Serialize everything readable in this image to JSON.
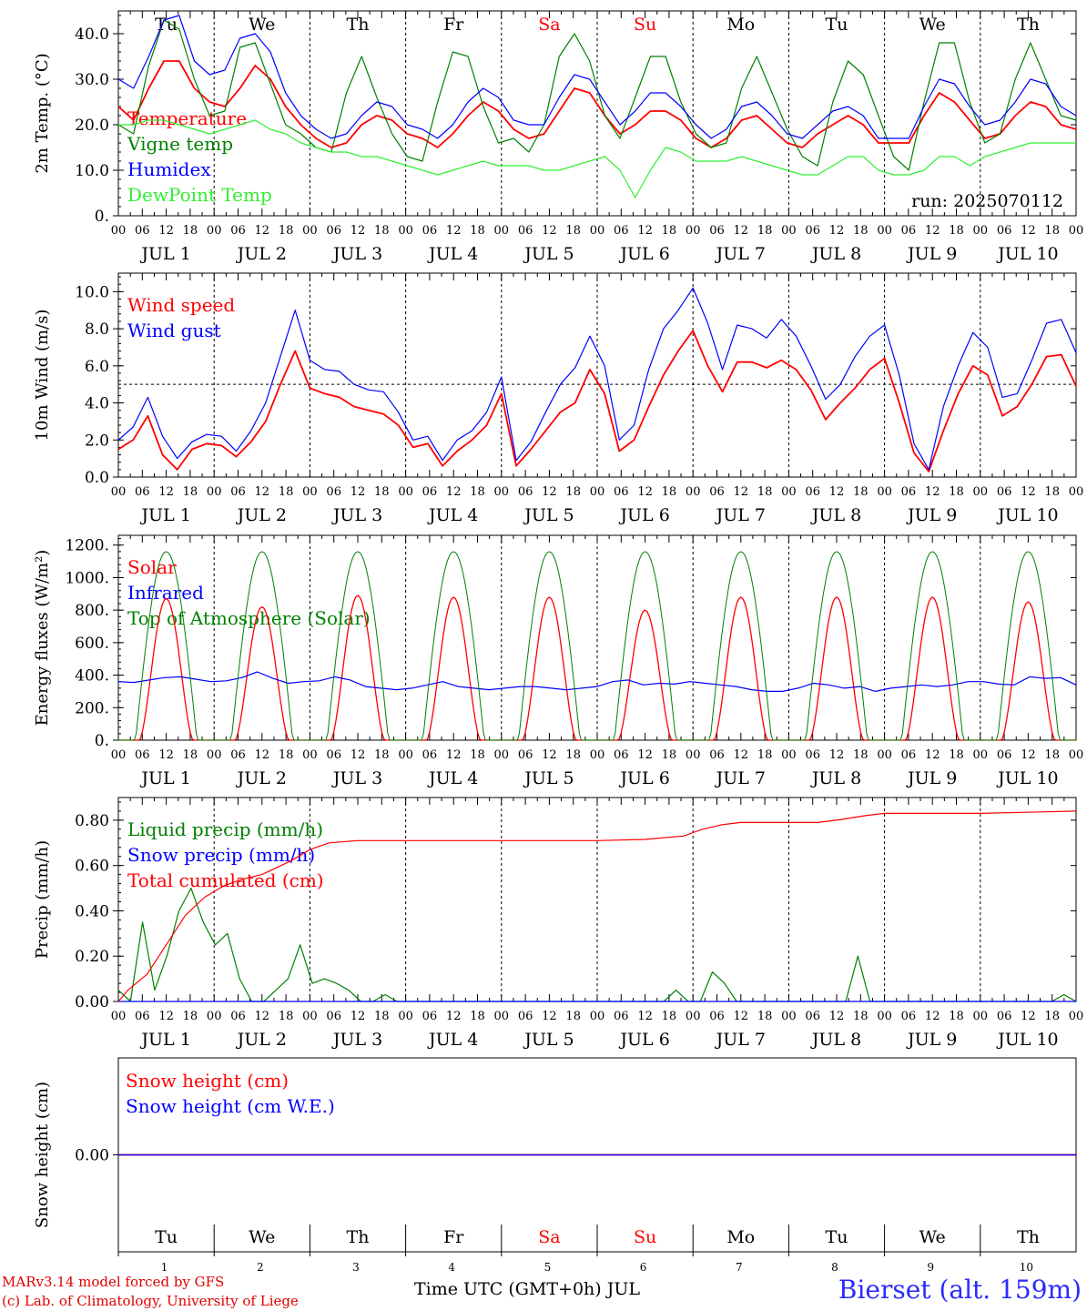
{
  "days": {
    "weekdays": [
      "Tu",
      "We",
      "Th",
      "Fr",
      "Sa",
      "Su",
      "Mo",
      "Tu",
      "We",
      "Th"
    ],
    "weekend_flags": [
      false,
      false,
      false,
      false,
      true,
      true,
      false,
      false,
      false,
      false
    ],
    "date_labels": [
      "JUL  1",
      "JUL  2",
      "JUL  3",
      "JUL  4",
      "JUL  5",
      "JUL  6",
      "JUL  7",
      "JUL  8",
      "JUL  9",
      "JUL 10"
    ],
    "day_numbers": [
      "1",
      "2",
      "3",
      "4",
      "5",
      "6",
      "7",
      "8",
      "9",
      "10"
    ],
    "hour_labels": [
      "00",
      "06",
      "12",
      "18"
    ],
    "end_hour_label": "00"
  },
  "colors": {
    "red": "#ff0000",
    "green": "#008000",
    "blue": "#0000ff",
    "lightgreen": "#33ee33",
    "weekend": "#ff0000"
  },
  "run_label": "run: 2025070112",
  "footer": {
    "model_line": "MARv3.14 model forced by GFS",
    "copyright_line": "(c) Lab. of Climatology, University of Liege",
    "x_axis_title": "Time UTC (GMT+0h) JUL",
    "station": "Bierset (alt. 159m)"
  },
  "chart_data": [
    {
      "type": "line",
      "ylabel": "2m Temp. (°C)",
      "ylim": [
        0,
        45
      ],
      "ytick_labels": [
        "0.",
        "10.0",
        "20.0",
        "30.0",
        "40.0"
      ],
      "yticks": [
        0,
        10,
        20,
        30,
        40
      ],
      "legend": [
        "Temperature",
        "Vigne temp",
        "Humidex",
        "DewPoint Temp"
      ],
      "series": [
        {
          "name": "Temperature",
          "color": "red",
          "values": [
            24,
            21,
            28,
            34,
            34,
            28,
            25,
            24,
            28,
            33,
            30,
            24,
            20,
            17,
            15,
            16,
            20,
            22,
            21,
            18,
            17,
            15,
            18,
            22,
            25,
            23,
            19,
            17,
            18,
            23,
            28,
            27,
            22,
            18,
            20,
            23,
            23,
            21,
            17,
            15,
            17,
            21,
            22,
            19,
            16,
            15,
            18,
            20,
            22,
            20,
            16,
            16,
            16,
            22,
            27,
            25,
            21,
            17,
            18,
            22,
            25,
            24,
            20,
            19
          ]
        },
        {
          "name": "Vigne temp",
          "color": "green",
          "values": [
            20,
            18,
            33,
            43,
            41,
            30,
            22,
            23,
            37,
            38,
            29,
            20,
            18,
            15,
            14,
            27,
            35,
            26,
            18,
            13,
            12,
            25,
            36,
            35,
            24,
            16,
            17,
            14,
            20,
            35,
            40,
            34,
            22,
            17,
            26,
            35,
            35,
            25,
            18,
            15,
            16,
            28,
            35,
            27,
            19,
            13,
            11,
            25,
            34,
            31,
            22,
            13,
            10,
            25,
            38,
            38,
            25,
            16,
            18,
            30,
            38,
            30,
            22,
            21
          ]
        },
        {
          "name": "Humidex",
          "color": "blue",
          "values": [
            30,
            28,
            35,
            43,
            44,
            34,
            31,
            32,
            39,
            40,
            36,
            27,
            22,
            19,
            17,
            18,
            22,
            25,
            24,
            20,
            19,
            17,
            20,
            25,
            28,
            26,
            21,
            20,
            20,
            26,
            31,
            30,
            25,
            20,
            23,
            27,
            27,
            24,
            20,
            17,
            19,
            24,
            25,
            22,
            18,
            17,
            20,
            23,
            24,
            22,
            17,
            17,
            17,
            24,
            30,
            29,
            24,
            20,
            21,
            25,
            30,
            29,
            24,
            22
          ]
        },
        {
          "name": "DewPoint Temp",
          "color": "lightgreen",
          "values": [
            20,
            20,
            21,
            21,
            20,
            19,
            18,
            19,
            20,
            21,
            19,
            18,
            16,
            15,
            14,
            14,
            13,
            13,
            12,
            11,
            10,
            9,
            10,
            11,
            12,
            11,
            11,
            11,
            10,
            10,
            11,
            12,
            13,
            10,
            4,
            10,
            15,
            14,
            12,
            12,
            12,
            13,
            12,
            11,
            10,
            9,
            9,
            11,
            13,
            13,
            10,
            9,
            9,
            10,
            13,
            13,
            11,
            13,
            14,
            15,
            16,
            16,
            16,
            16
          ]
        }
      ]
    },
    {
      "type": "line",
      "ylabel": "10m Wind (m/s)",
      "ylim": [
        0,
        11
      ],
      "ytick_labels": [
        "0.0",
        "2.0",
        "4.0",
        "6.0",
        "8.0",
        "10.0"
      ],
      "yticks": [
        0,
        2,
        4,
        6,
        8,
        10
      ],
      "reference_line": 5,
      "legend": [
        "Wind speed",
        "Wind gust"
      ],
      "series": [
        {
          "name": "Wind speed",
          "color": "red",
          "values": [
            1.5,
            2.0,
            3.3,
            1.2,
            0.4,
            1.5,
            1.8,
            1.7,
            1.1,
            1.9,
            3.0,
            5.0,
            6.8,
            4.8,
            4.5,
            4.3,
            3.8,
            3.6,
            3.4,
            2.8,
            1.6,
            1.8,
            0.6,
            1.4,
            2.0,
            2.8,
            4.5,
            0.6,
            1.5,
            2.5,
            3.5,
            4.0,
            5.8,
            4.5,
            1.4,
            2.0,
            3.8,
            5.5,
            6.8,
            7.9,
            6.0,
            4.6,
            6.2,
            6.2,
            5.9,
            6.3,
            5.8,
            4.7,
            3.1,
            4.0,
            4.8,
            5.8,
            6.4,
            4.0,
            1.3,
            0.3,
            2.5,
            4.5,
            6.0,
            5.5,
            3.3,
            3.8,
            5.0,
            6.5,
            6.6,
            4.9
          ]
        },
        {
          "name": "Wind gust",
          "color": "blue",
          "values": [
            2.0,
            2.7,
            4.3,
            2.2,
            1.0,
            1.9,
            2.3,
            2.2,
            1.4,
            2.5,
            4.0,
            6.5,
            9.0,
            6.3,
            5.8,
            5.7,
            5.0,
            4.7,
            4.6,
            3.5,
            2.0,
            2.2,
            0.9,
            2.0,
            2.5,
            3.5,
            5.4,
            0.9,
            1.9,
            3.5,
            5.0,
            5.9,
            7.6,
            6.0,
            2.0,
            2.8,
            5.8,
            8.0,
            9.0,
            10.2,
            8.3,
            5.8,
            8.2,
            8.0,
            7.5,
            8.5,
            7.6,
            6.0,
            4.2,
            5.0,
            6.5,
            7.6,
            8.2,
            5.5,
            1.8,
            0.4,
            3.8,
            6.0,
            7.8,
            7.0,
            4.3,
            4.5,
            6.3,
            8.3,
            8.5,
            6.7
          ]
        }
      ]
    },
    {
      "type": "line",
      "ylabel": "Energy fluxes (W/m²)",
      "ylim": [
        0,
        1260
      ],
      "ytick_labels": [
        "0.",
        "200.",
        "400.",
        "600.",
        "800.",
        "1000.",
        "1200."
      ],
      "yticks": [
        0,
        200,
        400,
        600,
        800,
        1000,
        1200
      ],
      "legend": [
        "Solar",
        "Infrared",
        "Top of Atmosphere (Solar)"
      ],
      "toa_peak": 1160,
      "solar_daily_peaks": [
        870,
        820,
        890,
        880,
        880,
        800,
        880,
        880,
        880,
        850
      ],
      "series": [
        {
          "name": "Solar",
          "color": "red"
        },
        {
          "name": "Infrared",
          "color": "blue",
          "values": [
            360,
            355,
            370,
            385,
            390,
            375,
            360,
            365,
            385,
            420,
            380,
            350,
            360,
            365,
            390,
            370,
            330,
            320,
            310,
            320,
            340,
            360,
            330,
            320,
            310,
            320,
            330,
            330,
            320,
            310,
            320,
            330,
            360,
            370,
            340,
            350,
            345,
            360,
            350,
            340,
            330,
            310,
            300,
            300,
            320,
            350,
            340,
            320,
            330,
            300,
            320,
            330,
            340,
            330,
            340,
            360,
            360,
            345,
            340,
            390,
            380,
            385,
            340
          ]
        },
        {
          "name": "Top of Atmosphere (Solar)",
          "color": "green"
        }
      ]
    },
    {
      "type": "line",
      "ylabel": "Precip (mm/h)",
      "ylim": [
        0,
        0.9
      ],
      "ytick_labels": [
        "0.00",
        "0.20",
        "0.40",
        "0.60",
        "0.80"
      ],
      "yticks": [
        0,
        0.2,
        0.4,
        0.6,
        0.8
      ],
      "legend": [
        "Liquid precip (mm/h)",
        "Snow precip (mm/h)",
        "Total cumulated (cm)"
      ],
      "series": [
        {
          "name": "Liquid precip (mm/h)",
          "color": "green",
          "values": [
            0.05,
            0.0,
            0.35,
            0.05,
            0.2,
            0.4,
            0.5,
            0.35,
            0.25,
            0.3,
            0.1,
            0.0,
            0.0,
            0.05,
            0.1,
            0.25,
            0.08,
            0.1,
            0.08,
            0.05,
            0.0,
            0.0,
            0.03,
            0.0,
            0,
            0,
            0,
            0,
            0,
            0,
            0,
            0,
            0,
            0,
            0,
            0,
            0,
            0,
            0,
            0,
            0,
            0,
            0,
            0,
            0,
            0,
            0.05,
            0,
            0,
            0.13,
            0.08,
            0,
            0,
            0,
            0,
            0,
            0,
            0,
            0,
            0,
            0,
            0.2,
            0,
            0,
            0,
            0,
            0,
            0,
            0,
            0,
            0,
            0,
            0,
            0,
            0,
            0,
            0,
            0,
            0.03,
            0
          ]
        },
        {
          "name": "Snow precip (mm/h)",
          "color": "blue",
          "values": [
            0,
            0
          ]
        },
        {
          "name": "Total cumulated (cm)",
          "color": "red",
          "x": [
            0,
            0.1,
            0.3,
            0.5,
            0.7,
            0.9,
            1.1,
            1.3,
            1.5,
            1.8,
            2.0,
            2.2,
            2.5,
            3.0,
            4.0,
            5.0,
            5.5,
            5.9,
            6.1,
            6.3,
            6.5,
            7.0,
            7.3,
            7.5,
            7.8,
            8.0,
            9.0,
            10.0
          ],
          "values": [
            0.0,
            0.05,
            0.12,
            0.25,
            0.38,
            0.46,
            0.51,
            0.54,
            0.56,
            0.62,
            0.67,
            0.7,
            0.71,
            0.71,
            0.71,
            0.71,
            0.715,
            0.73,
            0.76,
            0.78,
            0.79,
            0.79,
            0.79,
            0.8,
            0.82,
            0.83,
            0.83,
            0.84
          ]
        }
      ]
    },
    {
      "type": "line",
      "ylabel": "Snow height (cm)",
      "ylim": [
        -1,
        1
      ],
      "ytick_labels": [
        "0.00"
      ],
      "yticks": [
        0
      ],
      "legend": [
        "Snow height (cm)",
        "Snow height (cm W.E.)"
      ],
      "series": [
        {
          "name": "Snow height (cm)",
          "color": "red",
          "values": [
            0,
            0
          ]
        },
        {
          "name": "Snow height (cm W.E.)",
          "color": "blue",
          "values": [
            0,
            0
          ]
        }
      ]
    }
  ]
}
